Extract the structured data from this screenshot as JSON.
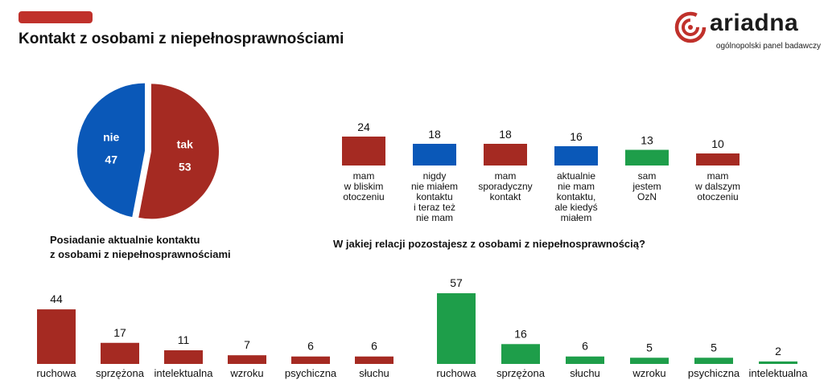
{
  "header": {
    "title": "Kontakt z osobami z niepełnosprawnościami",
    "accent_color": "#c0312b"
  },
  "logo": {
    "wordmark": "ariadna",
    "tagline": "ogólnopolski panel badawczy",
    "icon": "spiral-logo-icon"
  },
  "colors": {
    "red": "#a52a22",
    "blue": "#0a58b8",
    "green": "#1e9e4a"
  },
  "captions": {
    "pie": [
      "Posiadanie aktualnie kontaktu",
      "z osobami z niepełnosprawnościami"
    ],
    "relation": "W jakiej relacji pozostajesz z osobami z niepełnosprawnością?"
  },
  "chart_data": [
    {
      "type": "pie",
      "slices": [
        {
          "label": "tak",
          "value": 53,
          "color": "#a52a22"
        },
        {
          "label": "nie",
          "value": 47,
          "color": "#0a58b8"
        }
      ]
    },
    {
      "type": "bar",
      "categories": [
        "mam\nw bliskim\notoczeniu",
        "nigdy\nnie miałem\nkontaktu\ni teraz też\nnie mam",
        "mam\nsporadyczny\nkontakt",
        "aktualnie\nnie mam\nkontaktu,\nale kiedyś\nmiałem",
        "sam\njestem\nOzN",
        "mam\nw dalszym\notoczeniu"
      ],
      "values": [
        24,
        18,
        18,
        16,
        13,
        10
      ],
      "colors": [
        "#a52a22",
        "#0a58b8",
        "#a52a22",
        "#0a58b8",
        "#1e9e4a",
        "#a52a22"
      ]
    },
    {
      "type": "bar",
      "categories": [
        "ruchowa",
        "sprzężona",
        "intelektualna",
        "wzroku",
        "psychiczna",
        "słuchu"
      ],
      "values": [
        44,
        17,
        11,
        7,
        6,
        6
      ],
      "color": "#a52a22"
    },
    {
      "type": "bar",
      "categories": [
        "ruchowa",
        "sprzężona",
        "słuchu",
        "wzroku",
        "psychiczna",
        "intelektualna"
      ],
      "values": [
        57,
        16,
        6,
        5,
        5,
        2
      ],
      "color": "#1e9e4a"
    }
  ]
}
